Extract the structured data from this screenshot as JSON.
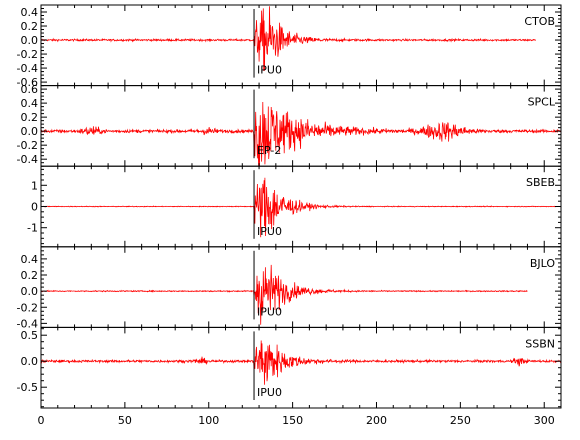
{
  "chart_data": {
    "type": "line",
    "xlim": [
      0,
      310
    ],
    "x_ticks": [
      0,
      50,
      100,
      150,
      200,
      250,
      300
    ],
    "x_tick_labels": [
      "0",
      "50",
      "100",
      "150",
      "200",
      "250",
      "300"
    ],
    "trace_color": "#ff0000",
    "panels": [
      {
        "station": "CTOB",
        "phase_label": "IPU0",
        "pick_time": 127,
        "ylim": [
          -0.65,
          0.5
        ],
        "y_ticks": [
          0.4,
          0.2,
          0.0,
          -0.2,
          -0.4,
          -0.6
        ],
        "y_tick_labels": [
          "0.4",
          "0.2",
          "0.0",
          "-0.2",
          "-0.4",
          "-0.6"
        ],
        "signal_end": 295,
        "noise": 0.012,
        "peak_amplitude": 0.45,
        "peak_time": 135,
        "decay": 9,
        "bursts": []
      },
      {
        "station": "SPCL",
        "phase_label": "EP-2",
        "pick_time": 127,
        "ylim": [
          -0.5,
          0.65
        ],
        "y_ticks": [
          0.6,
          0.4,
          0.2,
          0.0,
          -0.2,
          -0.4
        ],
        "y_tick_labels": [
          "0.6",
          "0.4",
          "0.2",
          "0.0",
          "-0.2",
          "-0.4"
        ],
        "signal_end": 310,
        "noise": 0.02,
        "peak_amplitude": 0.6,
        "peak_time": 129,
        "decay": 20,
        "bursts": [
          {
            "time": 30,
            "amplitude": 0.05,
            "width": 5
          },
          {
            "time": 100,
            "amplitude": 0.04,
            "width": 4
          },
          {
            "time": 240,
            "amplitude": 0.11,
            "width": 12
          }
        ]
      },
      {
        "station": "SBEB",
        "phase_label": "IPU0",
        "pick_time": 127,
        "ylim": [
          -1.9,
          1.9
        ],
        "y_ticks": [
          1,
          0,
          -1
        ],
        "y_tick_labels": [
          "1",
          "0",
          "-1"
        ],
        "signal_end": 310,
        "noise": 0.015,
        "peak_amplitude": 1.6,
        "peak_time": 134,
        "decay": 10,
        "bursts": []
      },
      {
        "station": "BJLO",
        "phase_label": "IPU0",
        "pick_time": 127,
        "ylim": [
          -0.45,
          0.55
        ],
        "y_ticks": [
          0.4,
          0.2,
          0.0,
          -0.2,
          -0.4
        ],
        "y_tick_labels": [
          "0.4",
          "0.2",
          "0.0",
          "-0.2",
          "-0.4"
        ],
        "signal_end": 290,
        "noise": 0.006,
        "peak_amplitude": 0.4,
        "peak_time": 133,
        "decay": 11,
        "bursts": []
      },
      {
        "station": "SSBN",
        "phase_label": "IPU0",
        "pick_time": 127,
        "ylim": [
          -0.9,
          0.65
        ],
        "y_ticks": [
          0.5,
          0.0,
          -0.5
        ],
        "y_tick_labels": [
          "0.5",
          "0.0",
          "-0.5"
        ],
        "signal_end": 310,
        "noise": 0.02,
        "peak_amplitude": 0.55,
        "peak_time": 133,
        "decay": 10,
        "bursts": [
          {
            "time": 95,
            "amplitude": 0.04,
            "width": 4
          },
          {
            "time": 285,
            "amplitude": 0.06,
            "width": 3
          }
        ]
      }
    ]
  }
}
